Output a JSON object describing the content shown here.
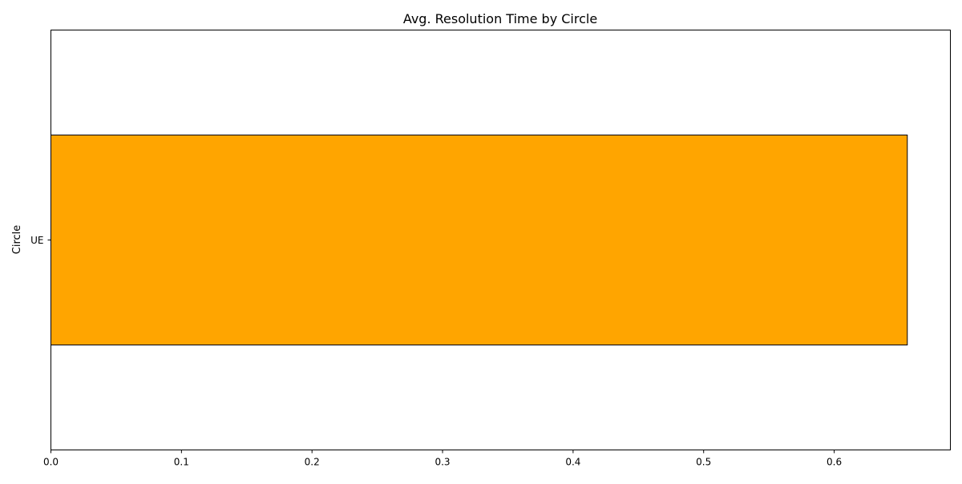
{
  "chart_data": {
    "type": "bar",
    "orientation": "horizontal",
    "title": "Avg. Resolution Time by Circle",
    "xlabel": "",
    "ylabel": "Circle",
    "categories": [
      "UE"
    ],
    "values": [
      0.656
    ],
    "xlim": [
      0,
      0.689
    ],
    "xticks": [
      0.0,
      0.1,
      0.2,
      0.3,
      0.4,
      0.5,
      0.6
    ],
    "xtick_labels": [
      "0.0",
      "0.1",
      "0.2",
      "0.3",
      "0.4",
      "0.5",
      "0.6"
    ],
    "grid": false,
    "bar_color": "#FFA500",
    "bar_edge_color": "#000000"
  }
}
